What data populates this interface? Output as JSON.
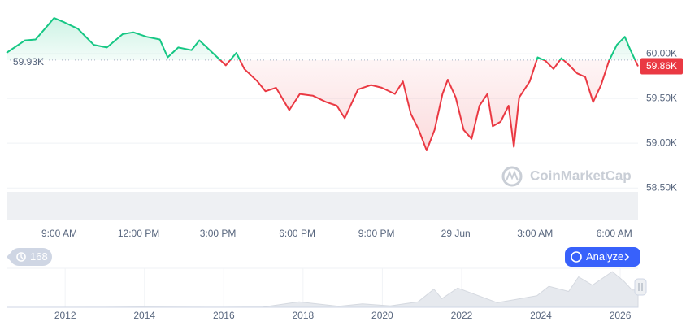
{
  "chart_data": {
    "type": "line",
    "baseline": {
      "value": 59.93,
      "label": "59.93K"
    },
    "current": {
      "value": 59.86,
      "label": "59.86K"
    },
    "up_color": "#16c784",
    "down_color": "#ea3943",
    "watermark": "CoinMarketCap",
    "x": [
      7.0,
      7.7,
      8.1,
      8.6,
      8.8,
      9.2,
      9.7,
      10.0,
      10.3,
      10.8,
      11.4,
      11.8,
      12.3,
      12.8,
      13.1,
      13.5,
      14.0,
      14.3,
      14.8,
      15.3,
      15.7,
      16.0,
      16.5,
      16.8,
      17.2,
      17.7,
      18.1,
      18.6,
      19.1,
      19.5,
      19.8,
      20.3,
      20.8,
      21.2,
      21.7,
      22.0,
      22.3,
      22.6,
      22.9,
      23.2,
      23.5,
      23.7,
      24.0,
      24.3,
      24.6,
      24.9,
      25.2,
      25.4,
      25.7,
      26.0,
      26.2,
      26.4,
      26.8,
      27.1,
      27.4,
      27.7,
      28.0,
      28.3,
      28.6,
      28.9,
      29.2,
      29.5,
      29.8,
      30.1,
      30.4,
      30.6,
      30.9
    ],
    "values": [
      60.01,
      60.15,
      60.16,
      60.33,
      60.4,
      60.35,
      60.28,
      60.19,
      60.1,
      60.07,
      60.22,
      60.24,
      60.19,
      60.16,
      59.96,
      60.07,
      60.04,
      60.15,
      60.01,
      59.87,
      60.01,
      59.83,
      59.69,
      59.58,
      59.62,
      59.37,
      59.55,
      59.53,
      59.46,
      59.42,
      59.28,
      59.6,
      59.65,
      59.62,
      59.55,
      59.69,
      59.33,
      59.15,
      58.92,
      59.15,
      59.55,
      59.71,
      59.51,
      59.15,
      59.05,
      59.42,
      59.55,
      59.19,
      59.24,
      59.42,
      58.96,
      59.51,
      59.69,
      59.96,
      59.92,
      59.83,
      59.95,
      59.87,
      59.78,
      59.74,
      59.46,
      59.65,
      59.92,
      60.1,
      60.19,
      60.05,
      59.86
    ],
    "xlim": [
      7.0,
      30.9
    ],
    "ylim": [
      58.42,
      60.51
    ],
    "yticks": [
      {
        "value": 58.5,
        "label": "58.50K"
      },
      {
        "value": 59,
        "label": "59.00K"
      },
      {
        "value": 59.5,
        "label": "59.50K"
      },
      {
        "value": 60,
        "label": "60.00K"
      }
    ],
    "xticks": [
      {
        "value": 9,
        "label": "9:00 AM"
      },
      {
        "value": 12,
        "label": "12:00 PM"
      },
      {
        "value": 15,
        "label": "3:00 PM"
      },
      {
        "value": 18,
        "label": "6:00 PM"
      },
      {
        "value": 21,
        "label": "9:00 PM"
      },
      {
        "value": 24,
        "label": "29 Jun"
      },
      {
        "value": 27,
        "label": "3:00 AM"
      },
      {
        "value": 30,
        "label": "6:00 AM"
      }
    ],
    "grid": true,
    "navigator": {
      "x": [
        2010.6,
        2013.0,
        2013.9,
        2016.0,
        2017.0,
        2017.9,
        2018.9,
        2019.5,
        2020.2,
        2020.9,
        2021.3,
        2021.5,
        2021.9,
        2022.9,
        2023.9,
        2024.2,
        2024.7,
        2024.95,
        2025.3,
        2025.8,
        2026.1,
        2026.3,
        2026.45
      ],
      "values": [
        0,
        0.2,
        1,
        0.4,
        1,
        19,
        3.5,
        12,
        5,
        19,
        63,
        30,
        67,
        16,
        40,
        73,
        55,
        106,
        77,
        124,
        90,
        60,
        60
      ],
      "xlim": [
        2010.52,
        2026.45
      ],
      "ylim": [
        0,
        130
      ],
      "xticks": [
        2012,
        2014,
        2016,
        2018,
        2020,
        2022,
        2024,
        2026
      ]
    }
  },
  "ui": {
    "history_count": 168,
    "analyze_button": "Analyze"
  }
}
